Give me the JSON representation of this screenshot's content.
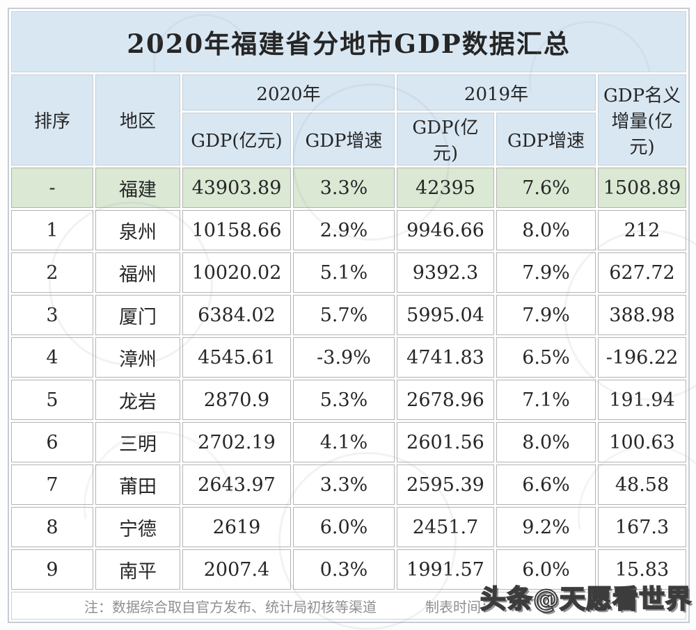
{
  "title": "2020年福建省分地市GDP数据汇总",
  "table": {
    "headers": {
      "rank": "排序",
      "region": "地区",
      "year2020": "2020年",
      "year2019": "2019年",
      "gdp_unit_2020": "GDP(亿元)",
      "gdp_growth_2020": "GDP增速",
      "gdp_unit_2019": "GDP(亿元)",
      "gdp_growth_2019": "GDP增速",
      "nominal_increase": "GDP名义增量(亿元)"
    },
    "rows": [
      {
        "rank": "-",
        "region": "福建",
        "gdp2020": "43903.89",
        "growth2020": "3.3%",
        "gdp2019": "42395",
        "growth2019": "7.6%",
        "nominal": "1508.89",
        "highlight": true
      },
      {
        "rank": "1",
        "region": "泉州",
        "gdp2020": "10158.66",
        "growth2020": "2.9%",
        "gdp2019": "9946.66",
        "growth2019": "8.0%",
        "nominal": "212",
        "highlight": false
      },
      {
        "rank": "2",
        "region": "福州",
        "gdp2020": "10020.02",
        "growth2020": "5.1%",
        "gdp2019": "9392.3",
        "growth2019": "7.9%",
        "nominal": "627.72",
        "highlight": false
      },
      {
        "rank": "3",
        "region": "厦门",
        "gdp2020": "6384.02",
        "growth2020": "5.7%",
        "gdp2019": "5995.04",
        "growth2019": "7.9%",
        "nominal": "388.98",
        "highlight": false
      },
      {
        "rank": "4",
        "region": "漳州",
        "gdp2020": "4545.61",
        "growth2020": "-3.9%",
        "gdp2019": "4741.83",
        "growth2019": "6.5%",
        "nominal": "-196.22",
        "highlight": false
      },
      {
        "rank": "5",
        "region": "龙岩",
        "gdp2020": "2870.9",
        "growth2020": "5.3%",
        "gdp2019": "2678.96",
        "growth2019": "7.1%",
        "nominal": "191.94",
        "highlight": false
      },
      {
        "rank": "6",
        "region": "三明",
        "gdp2020": "2702.19",
        "growth2020": "4.1%",
        "gdp2019": "2601.56",
        "growth2019": "8.0%",
        "nominal": "100.63",
        "highlight": false
      },
      {
        "rank": "7",
        "region": "莆田",
        "gdp2020": "2643.97",
        "growth2020": "3.3%",
        "gdp2019": "2595.39",
        "growth2019": "6.6%",
        "nominal": "48.58",
        "highlight": false
      },
      {
        "rank": "8",
        "region": "宁德",
        "gdp2020": "2619",
        "growth2020": "6.0%",
        "gdp2019": "2451.7",
        "growth2019": "9.2%",
        "nominal": "167.3",
        "highlight": false
      },
      {
        "rank": "9",
        "region": "南平",
        "gdp2020": "2007.4",
        "growth2020": "0.3%",
        "gdp2019": "1991.57",
        "growth2019": "6.0%",
        "nominal": "15.83",
        "highlight": false
      }
    ]
  },
  "footer": {
    "note": "注：数据综合取自官方发布、统计局初核等渠道",
    "time_label": "制表时间："
  },
  "watermark": {
    "text": "头条@天愿看世界"
  },
  "colors": {
    "title_bg": "#d9e7f2",
    "header_bg": "#d9e7f2",
    "highlight_bg": "#dae8d4",
    "cell_border": "#b3b3b3",
    "text": "#262626",
    "footer_text": "#8f8f8f"
  },
  "chart_data": {
    "type": "table",
    "title": "2020年福建省分地市GDP数据汇总",
    "columns": [
      "排序",
      "地区",
      "2020年 GDP(亿元)",
      "2020年 GDP增速",
      "2019年 GDP(亿元)",
      "2019年 GDP增速",
      "GDP名义增量(亿元)"
    ],
    "rows": [
      [
        "-",
        "福建",
        43903.89,
        "3.3%",
        42395,
        "7.6%",
        1508.89
      ],
      [
        "1",
        "泉州",
        10158.66,
        "2.9%",
        9946.66,
        "8.0%",
        212
      ],
      [
        "2",
        "福州",
        10020.02,
        "5.1%",
        9392.3,
        "7.9%",
        627.72
      ],
      [
        "3",
        "厦门",
        6384.02,
        "5.7%",
        5995.04,
        "7.9%",
        388.98
      ],
      [
        "4",
        "漳州",
        4545.61,
        "-3.9%",
        4741.83,
        "6.5%",
        -196.22
      ],
      [
        "5",
        "龙岩",
        2870.9,
        "5.3%",
        2678.96,
        "7.1%",
        191.94
      ],
      [
        "6",
        "三明",
        2702.19,
        "4.1%",
        2601.56,
        "8.0%",
        100.63
      ],
      [
        "7",
        "莆田",
        2643.97,
        "3.3%",
        2595.39,
        "6.6%",
        48.58
      ],
      [
        "8",
        "宁德",
        2619,
        "6.0%",
        2451.7,
        "9.2%",
        167.3
      ],
      [
        "9",
        "南平",
        2007.4,
        "0.3%",
        1991.57,
        "6.0%",
        15.83
      ]
    ],
    "notes": [
      "注：数据综合取自官方发布、统计局初核等渠道",
      "制表时间："
    ]
  }
}
